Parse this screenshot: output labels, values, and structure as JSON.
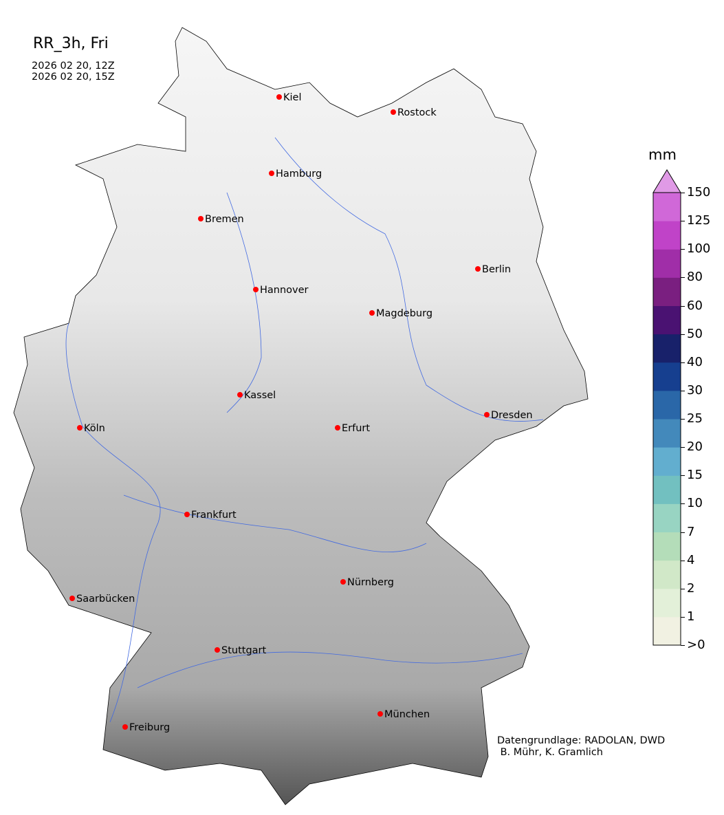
{
  "title": "RR_3h, Fri",
  "time_lines": [
    "2026 02 20, 12Z",
    "2026 02 20, 15Z"
  ],
  "credit": "Datengrundlage: RADOLAN, DWD\n B. Mühr, K. Gramlich",
  "colorbar": {
    "unit": "mm",
    "labels": [
      ">0",
      "1",
      "2",
      "4",
      "7",
      "10",
      "15",
      "20",
      "25",
      "30",
      "40",
      "50",
      "60",
      "80",
      "100",
      "125",
      "150"
    ],
    "colors": [
      "#f1f1e2",
      "#e3f0d9",
      "#d1e8c8",
      "#b4ddb9",
      "#98d4c2",
      "#72c0c0",
      "#62aecf",
      "#4389bb",
      "#2a67a8",
      "#163f8f",
      "#18216a",
      "#4a1272",
      "#7a1f80",
      "#a02ea8",
      "#c043c8",
      "#d068d8"
    ],
    "extend_color": "#e09ae6"
  },
  "cities": [
    "Kiel",
    "Rostock",
    "Hamburg",
    "Bremen",
    "Berlin",
    "Hannover",
    "Magdeburg",
    "Kassel",
    "Köln",
    "Erfurt",
    "Dresden",
    "Frankfurt",
    "Nürnberg",
    "Saarbücken",
    "Stuttgart",
    "München",
    "Freiburg"
  ],
  "colors": {
    "city_marker": "#ff0000",
    "rivers": "#4169e1",
    "terrain_low": "#f4f4f4",
    "terrain_high": "#3a3a3a"
  }
}
